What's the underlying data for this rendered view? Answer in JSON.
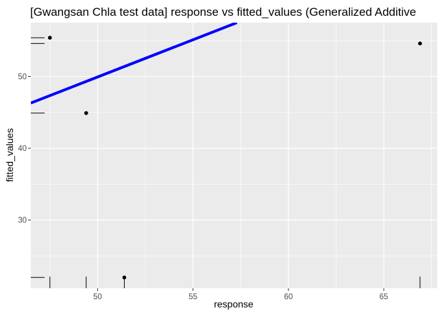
{
  "chart_data": {
    "type": "scatter",
    "title": "[Gwangsan Chla test data] response vs fitted_values (Generalized Additive",
    "xlabel": "response",
    "ylabel": "fitted_values",
    "xlim": [
      46.5,
      67.8
    ],
    "ylim": [
      20.5,
      57.5
    ],
    "x_ticks": [
      50,
      55,
      60,
      65
    ],
    "y_ticks": [
      30,
      40,
      50
    ],
    "grid": true,
    "rug": true,
    "points": [
      {
        "x": 47.5,
        "y": 55.4
      },
      {
        "x": 49.4,
        "y": 44.9
      },
      {
        "x": 51.4,
        "y": 22.0
      },
      {
        "x": 66.9,
        "y": 54.6
      }
    ],
    "fit_line": {
      "color": "#0000ff",
      "from": {
        "x": 46.5,
        "y": 46.3
      },
      "to": {
        "x": 57.3,
        "y": 57.5
      }
    },
    "colors": {
      "panel": "#ebebeb",
      "grid": "#ffffff",
      "point": "#000000"
    }
  }
}
